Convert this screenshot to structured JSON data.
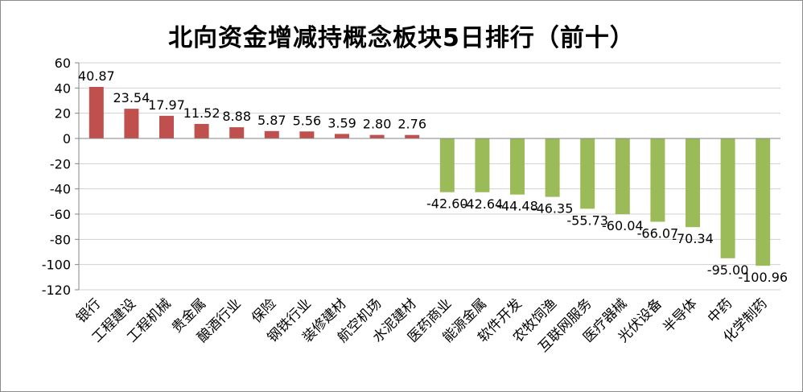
{
  "chart_data": {
    "type": "bar",
    "title": "北向资金增减持概念板块5日排行（前十）",
    "categories": [
      "银行",
      "工程建设",
      "工程机械",
      "贵金属",
      "酿酒行业",
      "保险",
      "钢铁行业",
      "装修建材",
      "航空机场",
      "水泥建材",
      "医药商业",
      "能源金属",
      "软件开发",
      "农牧饲渔",
      "互联网服务",
      "医疗器械",
      "光伏设备",
      "半导体",
      "中药",
      "化学制药"
    ],
    "values": [
      40.87,
      23.54,
      17.97,
      11.52,
      8.88,
      5.87,
      5.56,
      3.59,
      2.8,
      2.76,
      -42.6,
      -42.64,
      -44.48,
      -46.35,
      -55.73,
      -60.04,
      -66.07,
      -70.34,
      -95.0,
      -100.96
    ],
    "data_labels": [
      "40.87",
      "23.54",
      "17.97",
      "11.52",
      "8.88",
      "5.87",
      "5.56",
      "3.59",
      "2.80",
      "2.76",
      "-42.60",
      "-42.64",
      "-44.48",
      "-46.35",
      "-55.73",
      "-60.04",
      "-66.07",
      "-70.34",
      "-95.00",
      "-100.96"
    ],
    "yticks": [
      "60",
      "40",
      "20",
      "0",
      "-20",
      "-40",
      "-60",
      "-80",
      "-100",
      "-120"
    ],
    "ylim": [
      -120,
      60
    ],
    "grid": true,
    "legend": "none",
    "colors": {
      "positive": "#c0504d",
      "negative": "#9bbb59",
      "grid": "#d0d0d0",
      "axis": "#868686"
    }
  }
}
